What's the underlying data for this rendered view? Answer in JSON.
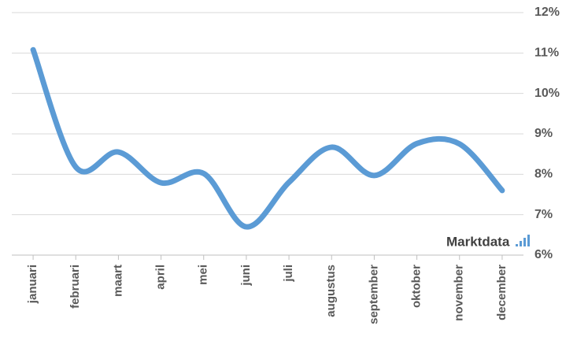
{
  "chart_data": {
    "type": "line",
    "categories": [
      "januari",
      "februari",
      "maart",
      "april",
      "mei",
      "juni",
      "juli",
      "augustus",
      "september",
      "oktober",
      "november",
      "december"
    ],
    "series": [
      {
        "color": "#5b9bd5",
        "values": [
          11.08,
          8.18,
          8.55,
          7.79,
          8.02,
          6.7,
          7.8,
          8.67,
          7.97,
          8.76,
          8.75,
          7.6
        ]
      }
    ],
    "ylim": [
      6,
      12
    ],
    "yticks": [
      {
        "value": 6,
        "label": "6%"
      },
      {
        "value": 7,
        "label": "7%"
      },
      {
        "value": 8,
        "label": "8%"
      },
      {
        "value": 9,
        "label": "9%"
      },
      {
        "value": 10,
        "label": "10%"
      },
      {
        "value": 11,
        "label": "11%"
      },
      {
        "value": 12,
        "label": "12%"
      }
    ],
    "grid": true,
    "smooth": true,
    "watermark": "Marktdata"
  }
}
